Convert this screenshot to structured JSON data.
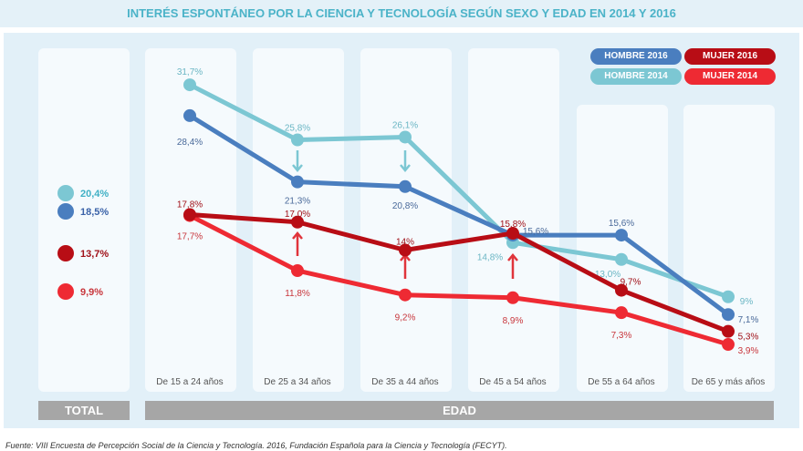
{
  "title": "INTERÉS ESPONTÁNEO POR LA CIENCIA Y TECNOLOGÍA SEGÚN  SEXO Y EDAD EN  2014 Y 2016",
  "source": "Fuente: VIII Encuesta de Percepción Social de la Ciencia y Tecnología. 2016, Fundación Española para la Ciencia y Tecnología (FECYT).",
  "total_label": "TOTAL",
  "edad_label": "EDAD",
  "chart_data": {
    "type": "line",
    "title": "INTERÉS ESPONTÁNEO POR LA CIENCIA Y TECNOLOGÍA SEGÚN  SEXO Y EDAD EN  2014 Y 2016",
    "categories": [
      "De 15 a 24 años",
      "De 25 a 34 años",
      "De 35 a 44 años",
      "De 45 a 54 años",
      "De 55 a 64 años",
      "De 65 y más años"
    ],
    "series": [
      {
        "name": "HOMBRE 2016",
        "color": "#4a7ebf",
        "values": [
          28.4,
          21.3,
          20.8,
          15.6,
          15.6,
          7.1
        ],
        "labels": [
          "28,4%",
          "21,3%",
          "20,8%",
          "15,6%",
          "15,6%",
          "7,1%"
        ],
        "total": 18.5,
        "total_label": "18,5%"
      },
      {
        "name": "HOMBRE 2014",
        "color": "#7cc7d3",
        "values": [
          31.7,
          25.8,
          26.1,
          14.8,
          13.0,
          9.0
        ],
        "labels": [
          "31,7%",
          "25,8%",
          "26,1%",
          "14,8%",
          "13,0%",
          "9%"
        ],
        "total": 20.4,
        "total_label": "20,4%"
      },
      {
        "name": "MUJER 2016",
        "color": "#b80d15",
        "values": [
          17.8,
          17.0,
          14.0,
          15.8,
          9.7,
          5.3
        ],
        "labels": [
          "17,8%",
          "17,0%",
          "14%",
          "15,8%",
          "9,7%",
          "5,3%"
        ],
        "total": 13.7,
        "total_label": "13,7%"
      },
      {
        "name": "MUJER 2014",
        "color": "#ee2a33",
        "values": [
          17.7,
          11.8,
          9.2,
          8.9,
          7.3,
          3.9
        ],
        "labels": [
          "17,7%",
          "11,8%",
          "9,2%",
          "8,9%",
          "7,3%",
          "3,9%"
        ],
        "total": 9.9,
        "total_label": "9,9%"
      }
    ],
    "legend": "top-right"
  }
}
